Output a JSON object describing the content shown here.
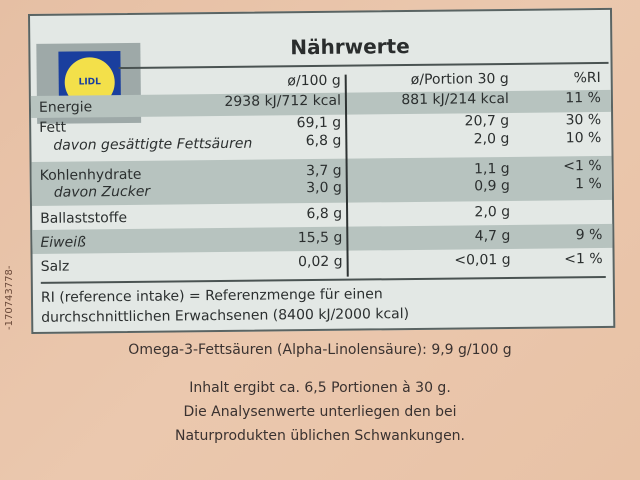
{
  "title": "Nährwerte",
  "logo_text": "LIDL",
  "side_code": "-170743778-",
  "columns": {
    "per100": "ø/100 g",
    "portion": "ø/Portion 30 g",
    "ri": "%RI"
  },
  "rows": [
    {
      "label": "Energie",
      "per100": "2938 kJ/712 kcal",
      "portion": "881 kJ/214 kcal",
      "ri": "11 %"
    },
    {
      "label": "Fett",
      "per100": "69,1 g",
      "portion": "20,7 g",
      "ri": "30 %"
    },
    {
      "label": "davon gesättigte Fettsäuren",
      "per100": "6,8 g",
      "portion": "2,0 g",
      "ri": "10 %"
    },
    {
      "label": "Kohlenhydrate",
      "per100": "3,7 g",
      "portion": "1,1 g",
      "ri": "<1 %"
    },
    {
      "label": "davon Zucker",
      "per100": "3,0 g",
      "portion": "0,9 g",
      "ri": "1 %"
    },
    {
      "label": "Ballaststoffe",
      "per100": "6,8 g",
      "portion": "2,0 g",
      "ri": ""
    },
    {
      "label": "Eiweiß",
      "per100": "15,5 g",
      "portion": "4,7 g",
      "ri": "9 %"
    },
    {
      "label": "Salz",
      "per100": "0,02 g",
      "portion": "<0,01 g",
      "ri": "<1 %"
    }
  ],
  "footnote": {
    "line1": "RI (reference intake) = Referenzmenge für einen",
    "line2": "durchschnittlichen Erwachsenen (8400 kJ/2000 kcal)"
  },
  "omega": "Omega-3-Fettsäuren (Alpha-Linolensäure): 9,9 g/100 g",
  "notes": [
    "Inhalt ergibt ca. 6,5 Portionen à 30 g.",
    "Die Analysenwerte unterliegen den bei",
    "Naturprodukten üblichen Schwankungen."
  ]
}
